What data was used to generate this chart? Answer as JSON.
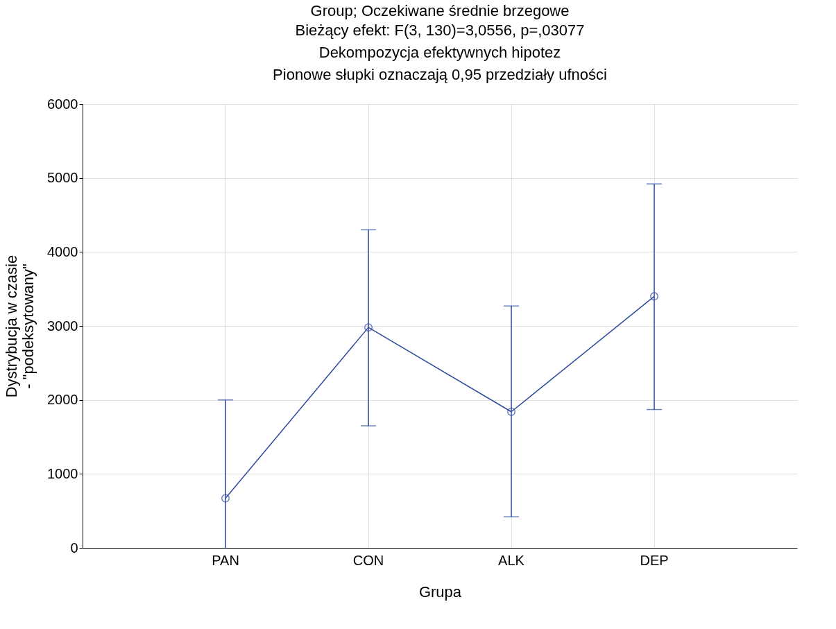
{
  "chart_data": {
    "type": "line",
    "title": "Group; Oczekiwane średnie brzegowe",
    "subtitle": "Bieżący efekt: F(3, 130)=3,0556, p=,03077\nDekompozycja efektywnych hipotez\nPionowe słupki oznaczają 0,95 przedziały ufności",
    "xlabel": "Grupa",
    "ylabel": "Dystrybucja w czasie\n- \"podeksytowany\"",
    "categories": [
      "PAN",
      "CON",
      "ALK",
      "DEP"
    ],
    "series": [
      {
        "color": "#2e4a9e",
        "values": [
          670,
          2980,
          1840,
          3400
        ],
        "errors": [
          [
            0,
            2000
          ],
          [
            1650,
            4300
          ],
          [
            420,
            3270
          ],
          [
            1870,
            4920
          ]
        ]
      }
    ],
    "ylim": [
      0,
      6000
    ],
    "yticks": [
      0,
      1000,
      2000,
      3000,
      4000,
      5000,
      6000
    ],
    "grid": true,
    "marker": "circle",
    "line_style": "solid"
  }
}
